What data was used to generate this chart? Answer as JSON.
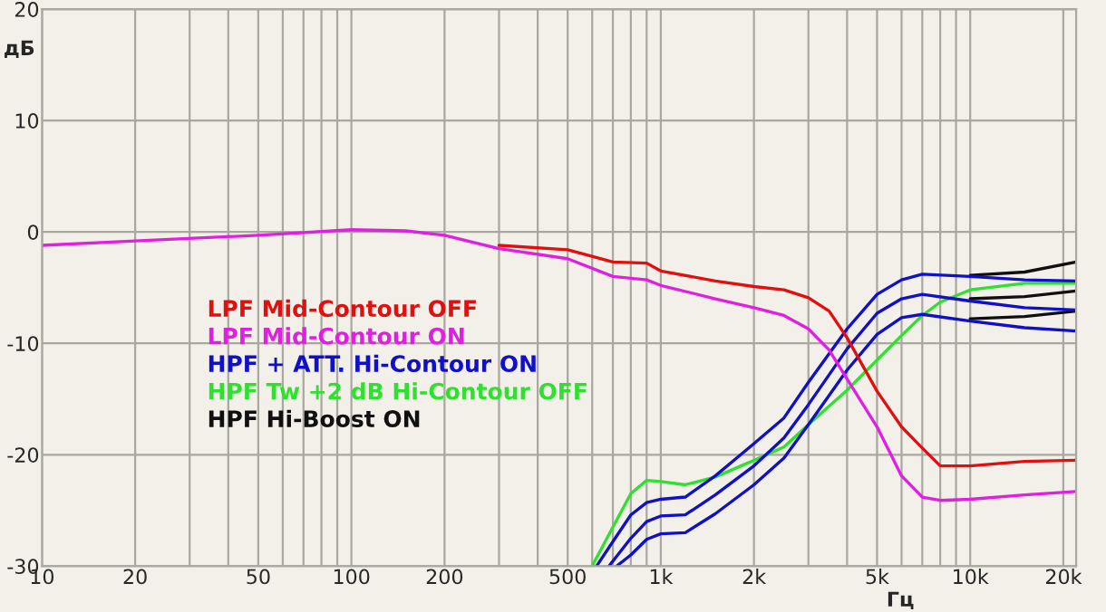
{
  "chart_data": {
    "type": "line",
    "xlabel": "Гц",
    "ylabel": "дБ",
    "log": "x",
    "grid": true,
    "legend": "left",
    "line_style": "solid",
    "marker": "none",
    "xlim": [
      10,
      22000
    ],
    "ylim": [
      -30,
      20
    ],
    "xticks": [
      10,
      20,
      {
        "value": 30,
        "label": null
      },
      {
        "value": 40,
        "label": null
      },
      50,
      {
        "value": 60,
        "label": null
      },
      {
        "value": 70,
        "label": null
      },
      {
        "value": 80,
        "label": null
      },
      {
        "value": 90,
        "label": null
      },
      100,
      200,
      {
        "value": 300,
        "label": null
      },
      {
        "value": 400,
        "label": null
      },
      500,
      {
        "value": 600,
        "label": null
      },
      {
        "value": 700,
        "label": null
      },
      {
        "value": 800,
        "label": null
      },
      {
        "value": 900,
        "label": null
      },
      {
        "value": 1000,
        "label": "1k"
      },
      {
        "value": 2000,
        "label": "2k"
      },
      {
        "value": 3000,
        "label": null
      },
      {
        "value": 4000,
        "label": null
      },
      {
        "value": 5000,
        "label": "5k"
      },
      {
        "value": 6000,
        "label": null
      },
      {
        "value": 7000,
        "label": null
      },
      {
        "value": 8000,
        "label": null
      },
      {
        "value": 9000,
        "label": null
      },
      {
        "value": 10000,
        "label": "10k"
      },
      {
        "value": 20000,
        "label": "20k"
      }
    ],
    "yticks": [
      -30,
      -20,
      -10,
      0,
      10,
      20
    ],
    "series": [
      {
        "name": "LPF Mid-Contour OFF",
        "color": "#e01010",
        "x": [
          300,
          500,
          700,
          900,
          1000,
          1500,
          2000,
          2500,
          3000,
          3500,
          4000,
          5000,
          6000,
          7000,
          8000,
          10000,
          15000,
          22000
        ],
        "values": [
          -1.2,
          -1.6,
          -2.7,
          -2.8,
          -3.5,
          -4.4,
          -4.9,
          -5.2,
          -5.9,
          -7.1,
          -9.5,
          -14.3,
          -17.5,
          -19.4,
          -21,
          -21,
          -20.6,
          -20.5
        ]
      },
      {
        "name": "LPF Mid-Contour ON",
        "color": "#e020e0",
        "x": [
          10,
          20,
          50,
          100,
          150,
          200,
          300,
          500,
          700,
          900,
          1000,
          1500,
          2000,
          2500,
          3000,
          3500,
          4000,
          5000,
          6000,
          7000,
          8000,
          10000,
          15000,
          22000
        ],
        "values": [
          -1.2,
          -0.8,
          -0.3,
          0.2,
          0.1,
          -0.3,
          -1.5,
          -2.4,
          -4.0,
          -4.3,
          -4.8,
          -6.0,
          -6.8,
          -7.5,
          -8.7,
          -10.6,
          -13.2,
          -17.5,
          -21.9,
          -23.8,
          -24.1,
          -24,
          -23.6,
          -23.3
        ]
      },
      {
        "name": "HPF + ATT. Hi-Contour ON",
        "color": "#1010c8",
        "x": [
          620,
          700,
          800,
          900,
          1000,
          1200,
          1500,
          2000,
          2500,
          3000,
          4000,
          5000,
          6000,
          7000,
          10000,
          15000,
          22000
        ],
        "values": [
          -30,
          -27.8,
          -25.4,
          -24.3,
          -24,
          -23.8,
          -21.9,
          -19,
          -16.7,
          -13.5,
          -8.7,
          -5.6,
          -4.3,
          -3.8,
          -4,
          -4.3,
          -4.4
        ]
      },
      {
        "color": "#1010c8",
        "x": [
          680,
          800,
          900,
          1000,
          1200,
          1500,
          2000,
          2500,
          3000,
          4000,
          5000,
          6000,
          7000,
          10000,
          15000,
          22000
        ],
        "values": [
          -30,
          -27.5,
          -26,
          -25.5,
          -25.4,
          -23.6,
          -21,
          -18.5,
          -15.5,
          -10.5,
          -7.3,
          -6,
          -5.6,
          -6.2,
          -6.8,
          -7.0
        ]
      },
      {
        "color": "#1010c8",
        "x": [
          720,
          800,
          900,
          1000,
          1200,
          1500,
          2000,
          2500,
          3000,
          4000,
          5000,
          6000,
          7000,
          10000,
          15000,
          22000
        ],
        "values": [
          -30,
          -29,
          -27.6,
          -27.1,
          -27,
          -25.3,
          -22.7,
          -20.3,
          -17.3,
          -12.4,
          -9.2,
          -7.7,
          -7.4,
          -8,
          -8.6,
          -8.9
        ]
      },
      {
        "name": "HPF Tw +2 dB Hi-Contour OFF",
        "color": "#30e030",
        "x": [
          600,
          700,
          800,
          900,
          1000,
          1200,
          1500,
          2000,
          2500,
          3000,
          4000,
          5000,
          6000,
          7000,
          8000,
          10000,
          15000,
          22000
        ],
        "values": [
          -30,
          -26.5,
          -23.5,
          -22.3,
          -22.4,
          -22.7,
          -22,
          -20.5,
          -19.3,
          -17.3,
          -14.2,
          -11.5,
          -9.3,
          -7.5,
          -6.3,
          -5.2,
          -4.6,
          -4.6
        ]
      },
      {
        "name": "HPF Hi-Boost ON",
        "color": "#101010",
        "x": [
          10000,
          15000,
          22000
        ],
        "values": [
          -3.9,
          -3.6,
          -2.7
        ]
      },
      {
        "color": "#101010",
        "x": [
          10000,
          15000,
          22000
        ],
        "values": [
          -6.0,
          -5.8,
          -5.3
        ]
      },
      {
        "color": "#101010",
        "x": [
          10000,
          15000,
          22000
        ],
        "values": [
          -7.8,
          -7.6,
          -7.1
        ]
      }
    ]
  }
}
